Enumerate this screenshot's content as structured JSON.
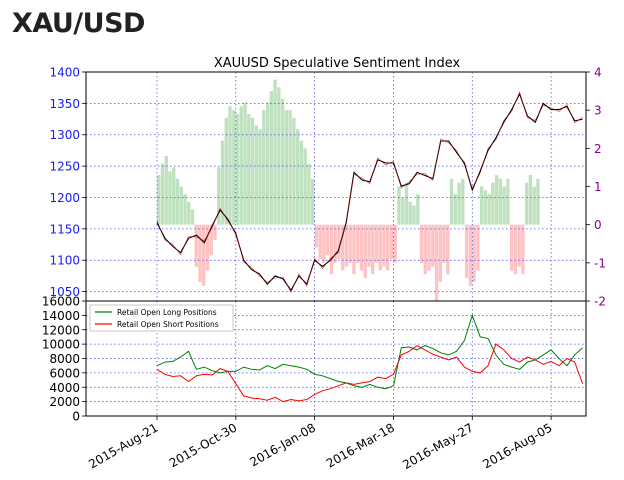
{
  "header": {
    "title": "XAU/USD"
  },
  "chart_data": [
    {
      "type": "line",
      "title": "XAUUSD Speculative Sentiment Index",
      "x_ticks": [
        "2015-Aug-21",
        "2015-Oct-30",
        "2016-Jan-08",
        "2016-Mar-18",
        "2016-May-27",
        "2016-Aug-05"
      ],
      "x_range": [
        "2015-Aug-21",
        "2016-Sep-05"
      ],
      "grid": true,
      "y_left": {
        "ticks": [
          1050,
          1100,
          1150,
          1200,
          1250,
          1300,
          1350,
          1400
        ],
        "range": [
          1035,
          1400
        ],
        "color": "#1a1aff"
      },
      "y_right": {
        "ticks": [
          -2,
          -1,
          0,
          1,
          2,
          3,
          4
        ],
        "range": [
          -2,
          4
        ],
        "color": "#8b008b"
      },
      "series": [
        {
          "values": [
            [
              "2015-Aug-21",
              1160
            ],
            [
              "2015-Aug-28",
              1135
            ],
            [
              "2015-Sep-04",
              1122
            ],
            [
              "2015-Sep-11",
              1112
            ],
            [
              "2015-Sep-18",
              1135
            ],
            [
              "2015-Sep-25",
              1140
            ],
            [
              "2015-Oct-02",
              1128
            ],
            [
              "2015-Oct-09",
              1155
            ],
            [
              "2015-Oct-16",
              1180
            ],
            [
              "2015-Oct-23",
              1165
            ],
            [
              "2015-Oct-30",
              1142
            ],
            [
              "2015-Nov-06",
              1100
            ],
            [
              "2015-Nov-13",
              1085
            ],
            [
              "2015-Nov-20",
              1078
            ],
            [
              "2015-Nov-27",
              1062
            ],
            [
              "2015-Dec-04",
              1075
            ],
            [
              "2015-Dec-11",
              1070
            ],
            [
              "2015-Dec-18",
              1052
            ],
            [
              "2015-Dec-25",
              1075
            ],
            [
              "2016-Jan-01",
              1062
            ],
            [
              "2016-Jan-08",
              1100
            ],
            [
              "2016-Jan-15",
              1090
            ],
            [
              "2016-Jan-22",
              1100
            ],
            [
              "2016-Jan-29",
              1115
            ],
            [
              "2016-Feb-05",
              1160
            ],
            [
              "2016-Feb-12",
              1240
            ],
            [
              "2016-Feb-19",
              1228
            ],
            [
              "2016-Feb-26",
              1225
            ],
            [
              "2016-Mar-04",
              1260
            ],
            [
              "2016-Mar-11",
              1255
            ],
            [
              "2016-Mar-18",
              1255
            ],
            [
              "2016-Mar-25",
              1218
            ],
            [
              "2016-Apr-01",
              1222
            ],
            [
              "2016-Apr-08",
              1240
            ],
            [
              "2016-Apr-15",
              1235
            ],
            [
              "2016-Apr-22",
              1230
            ],
            [
              "2016-Apr-29",
              1290
            ],
            [
              "2016-May-06",
              1290
            ],
            [
              "2016-May-13",
              1272
            ],
            [
              "2016-May-20",
              1255
            ],
            [
              "2016-May-27",
              1212
            ],
            [
              "2016-Jun-03",
              1242
            ],
            [
              "2016-Jun-10",
              1275
            ],
            [
              "2016-Jun-17",
              1295
            ],
            [
              "2016-Jun-24",
              1320
            ],
            [
              "2016-Jul-01",
              1340
            ],
            [
              "2016-Jul-08",
              1365
            ],
            [
              "2016-Jul-15",
              1330
            ],
            [
              "2016-Jul-22",
              1320
            ],
            [
              "2016-Jul-29",
              1350
            ],
            [
              "2016-Aug-05",
              1340
            ],
            [
              "2016-Aug-12",
              1340
            ],
            [
              "2016-Aug-19",
              1345
            ],
            [
              "2016-Aug-26",
              1322
            ],
            [
              "2016-Sep-02",
              1325
            ]
          ]
        }
      ],
      "ssi_bars": [
        1.3,
        1.6,
        1.8,
        1.4,
        1.5,
        1.2,
        1.0,
        0.8,
        0.6,
        0.4,
        -1.1,
        -1.5,
        -1.6,
        -1.2,
        -0.8,
        -0.4,
        1.5,
        2.2,
        2.8,
        3.1,
        3.0,
        2.9,
        3.1,
        3.2,
        2.9,
        2.8,
        2.6,
        2.5,
        3.0,
        3.2,
        3.5,
        3.8,
        3.6,
        3.3,
        3.0,
        3.0,
        2.8,
        2.5,
        2.2,
        2.0,
        1.6,
        1.2,
        -0.6,
        -0.9,
        -1.0,
        -0.8,
        -1.3,
        -1.0,
        -0.9,
        -1.2,
        -1.1,
        -1.0,
        -1.3,
        -1.0,
        -1.2,
        -1.4,
        -1.1,
        -1.3,
        -1.0,
        -1.2,
        -1.1,
        -1.2,
        -0.9,
        -1.0,
        1.0,
        0.7,
        1.1,
        0.6,
        0.5,
        0.8,
        -1.0,
        -1.3,
        -1.2,
        -1.1,
        -2.0,
        -1.5,
        -1.0,
        -1.3,
        1.2,
        0.8,
        1.1,
        1.2,
        -1.4,
        -1.6,
        -1.5,
        -1.2,
        1.0,
        0.9,
        0.8,
        1.1,
        1.3,
        1.2,
        1.0,
        1.2,
        -1.2,
        -1.3,
        -1.1,
        -1.3,
        1.1,
        1.3,
        1.0,
        1.2
      ]
    },
    {
      "type": "line",
      "x_ticks": [
        "2015-Aug-21",
        "2015-Oct-30",
        "2016-Jan-08",
        "2016-Mar-18",
        "2016-May-27",
        "2016-Aug-05"
      ],
      "x_range": [
        "2015-Aug-21",
        "2016-Sep-05"
      ],
      "grid": true,
      "y_ticks": [
        0,
        2000,
        4000,
        6000,
        8000,
        10000,
        12000,
        14000,
        16000
      ],
      "ylim": [
        0,
        16000
      ],
      "legend_position": "top-left",
      "series": [
        {
          "name": "Retail Open Long Positions",
          "color": "#008000",
          "values": [
            [
              "2015-Aug-21",
              7000
            ],
            [
              "2015-Aug-28",
              7500
            ],
            [
              "2015-Sep-04",
              7600
            ],
            [
              "2015-Sep-11",
              8200
            ],
            [
              "2015-Sep-18",
              9000
            ],
            [
              "2015-Sep-25",
              6500
            ],
            [
              "2015-Oct-02",
              6800
            ],
            [
              "2015-Oct-09",
              6300
            ],
            [
              "2015-Oct-16",
              6000
            ],
            [
              "2015-Oct-23",
              6200
            ],
            [
              "2015-Oct-30",
              6200
            ],
            [
              "2015-Nov-06",
              6800
            ],
            [
              "2015-Nov-13",
              6500
            ],
            [
              "2015-Nov-20",
              6400
            ],
            [
              "2015-Nov-27",
              7000
            ],
            [
              "2015-Dec-04",
              6600
            ],
            [
              "2015-Dec-11",
              7200
            ],
            [
              "2015-Dec-18",
              7000
            ],
            [
              "2015-Dec-25",
              6800
            ],
            [
              "2016-Jan-01",
              6500
            ],
            [
              "2016-Jan-08",
              5800
            ],
            [
              "2016-Jan-15",
              5600
            ],
            [
              "2016-Jan-22",
              5200
            ],
            [
              "2016-Jan-29",
              4800
            ],
            [
              "2016-Feb-05",
              4600
            ],
            [
              "2016-Feb-12",
              4200
            ],
            [
              "2016-Feb-19",
              4000
            ],
            [
              "2016-Feb-26",
              4400
            ],
            [
              "2016-Mar-04",
              4000
            ],
            [
              "2016-Mar-11",
              3800
            ],
            [
              "2016-Mar-18",
              4200
            ],
            [
              "2016-Mar-25",
              9500
            ],
            [
              "2016-Apr-01",
              9600
            ],
            [
              "2016-Apr-08",
              9200
            ],
            [
              "2016-Apr-15",
              9800
            ],
            [
              "2016-Apr-22",
              9400
            ],
            [
              "2016-Apr-29",
              8800
            ],
            [
              "2016-May-06",
              8500
            ],
            [
              "2016-May-13",
              9000
            ],
            [
              "2016-May-20",
              10500
            ],
            [
              "2016-May-27",
              14000
            ],
            [
              "2016-Jun-03",
              11000
            ],
            [
              "2016-Jun-10",
              10800
            ],
            [
              "2016-Jun-17",
              8500
            ],
            [
              "2016-Jun-24",
              7200
            ],
            [
              "2016-Jul-01",
              6800
            ],
            [
              "2016-Jul-08",
              6500
            ],
            [
              "2016-Jul-15",
              7500
            ],
            [
              "2016-Jul-22",
              7800
            ],
            [
              "2016-Jul-29",
              8500
            ],
            [
              "2016-Aug-05",
              9200
            ],
            [
              "2016-Aug-12",
              8000
            ],
            [
              "2016-Aug-19",
              7000
            ],
            [
              "2016-Aug-26",
              8500
            ],
            [
              "2016-Sep-02",
              9500
            ]
          ]
        },
        {
          "name": "Retail Open Short Positions",
          "color": "#ff0000",
          "values": [
            [
              "2015-Aug-21",
              6500
            ],
            [
              "2015-Aug-28",
              5800
            ],
            [
              "2015-Sep-04",
              5500
            ],
            [
              "2015-Sep-11",
              5600
            ],
            [
              "2015-Sep-18",
              4800
            ],
            [
              "2015-Sep-25",
              5600
            ],
            [
              "2015-Oct-02",
              5800
            ],
            [
              "2015-Oct-09",
              5700
            ],
            [
              "2015-Oct-16",
              6600
            ],
            [
              "2015-Oct-23",
              6200
            ],
            [
              "2015-Oct-30",
              4500
            ],
            [
              "2015-Nov-06",
              2800
            ],
            [
              "2015-Nov-13",
              2500
            ],
            [
              "2015-Nov-20",
              2400
            ],
            [
              "2015-Nov-27",
              2200
            ],
            [
              "2015-Dec-04",
              2600
            ],
            [
              "2015-Dec-11",
              2000
            ],
            [
              "2015-Dec-18",
              2300
            ],
            [
              "2015-Dec-25",
              2100
            ],
            [
              "2016-Jan-01",
              2300
            ],
            [
              "2016-Jan-08",
              3000
            ],
            [
              "2016-Jan-15",
              3500
            ],
            [
              "2016-Jan-22",
              3800
            ],
            [
              "2016-Jan-29",
              4200
            ],
            [
              "2016-Feb-05",
              4600
            ],
            [
              "2016-Feb-12",
              4400
            ],
            [
              "2016-Feb-19",
              4600
            ],
            [
              "2016-Feb-26",
              4800
            ],
            [
              "2016-Mar-04",
              5400
            ],
            [
              "2016-Mar-11",
              5200
            ],
            [
              "2016-Mar-18",
              5800
            ],
            [
              "2016-Mar-25",
              8500
            ],
            [
              "2016-Apr-01",
              9000
            ],
            [
              "2016-Apr-08",
              9800
            ],
            [
              "2016-Apr-15",
              9200
            ],
            [
              "2016-Apr-22",
              8600
            ],
            [
              "2016-Apr-29",
              8200
            ],
            [
              "2016-May-06",
              7800
            ],
            [
              "2016-May-13",
              8200
            ],
            [
              "2016-May-20",
              6800
            ],
            [
              "2016-May-27",
              6200
            ],
            [
              "2016-Jun-03",
              6000
            ],
            [
              "2016-Jun-10",
              7000
            ],
            [
              "2016-Jun-17",
              10000
            ],
            [
              "2016-Jun-24",
              9200
            ],
            [
              "2016-Jul-01",
              8000
            ],
            [
              "2016-Jul-08",
              7500
            ],
            [
              "2016-Jul-15",
              8200
            ],
            [
              "2016-Jul-22",
              7800
            ],
            [
              "2016-Jul-29",
              7200
            ],
            [
              "2016-Aug-05",
              7600
            ],
            [
              "2016-Aug-12",
              7000
            ],
            [
              "2016-Aug-19",
              8000
            ],
            [
              "2016-Aug-26",
              7500
            ],
            [
              "2016-Sep-02",
              4500
            ]
          ]
        }
      ]
    }
  ]
}
